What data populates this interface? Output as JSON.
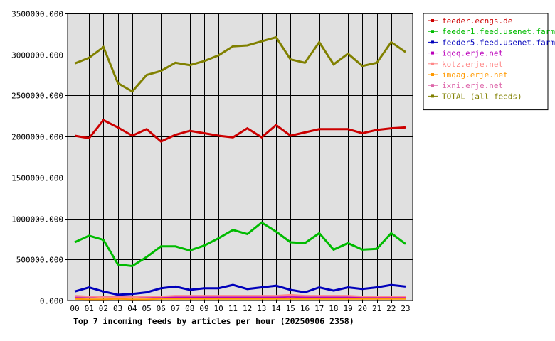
{
  "chart_data": {
    "type": "line",
    "title": "Top 7 incoming feeds by articles per hour (20250906 2358)",
    "x": [
      "00",
      "01",
      "02",
      "03",
      "04",
      "05",
      "06",
      "07",
      "08",
      "09",
      "10",
      "11",
      "12",
      "13",
      "14",
      "15",
      "16",
      "17",
      "18",
      "19",
      "20",
      "21",
      "22",
      "23"
    ],
    "yticks": [
      "0.000",
      "500000.000",
      "1000000.000",
      "1500000.000",
      "2000000.000",
      "2500000.000",
      "3000000.000",
      "3500000.000"
    ],
    "ylim": [
      0,
      3500000
    ],
    "grid": true,
    "legend_position": "top-right",
    "plot_background": "#e0e0e0",
    "series": [
      {
        "name": "feeder.ecngs.de",
        "color": "#cc0000",
        "values": [
          2010000,
          1980000,
          2200000,
          2110000,
          2010000,
          2090000,
          1940000,
          2020000,
          2070000,
          2040000,
          2010000,
          1990000,
          2100000,
          1990000,
          2140000,
          2010000,
          2050000,
          2090000,
          2090000,
          2090000,
          2040000,
          2080000,
          2100000,
          2110000
        ]
      },
      {
        "name": "feeder1.feed.usenet.farm",
        "color": "#00bb00",
        "values": [
          710000,
          790000,
          740000,
          440000,
          420000,
          530000,
          660000,
          660000,
          610000,
          670000,
          760000,
          860000,
          810000,
          950000,
          840000,
          710000,
          700000,
          820000,
          620000,
          700000,
          620000,
          630000,
          820000,
          690000
        ]
      },
      {
        "name": "feeder5.feed.usenet.farm",
        "color": "#0000bb",
        "values": [
          110000,
          160000,
          110000,
          70000,
          80000,
          100000,
          150000,
          170000,
          130000,
          150000,
          150000,
          190000,
          140000,
          160000,
          180000,
          130000,
          100000,
          160000,
          120000,
          160000,
          140000,
          160000,
          190000,
          170000
        ]
      },
      {
        "name": "iqoq.erje.net",
        "color": "#bb00bb",
        "values": [
          40000,
          35000,
          40000,
          40000,
          40000,
          45000,
          40000,
          40000,
          40000,
          40000,
          40000,
          40000,
          40000,
          40000,
          40000,
          45000,
          40000,
          40000,
          40000,
          40000,
          40000,
          40000,
          40000,
          40000
        ]
      },
      {
        "name": "kotz.erje.net",
        "color": "#ff8888",
        "values": [
          60000,
          50000,
          40000,
          40000,
          40000,
          50000,
          50000,
          60000,
          60000,
          60000,
          60000,
          60000,
          60000,
          60000,
          60000,
          70000,
          60000,
          60000,
          60000,
          60000,
          50000,
          50000,
          50000,
          50000
        ]
      },
      {
        "name": "imqag.erje.net",
        "color": "#ff9900",
        "values": [
          20000,
          15000,
          15000,
          20000,
          15000,
          15000,
          20000,
          20000,
          20000,
          20000,
          20000,
          20000,
          20000,
          20000,
          20000,
          20000,
          20000,
          20000,
          20000,
          20000,
          20000,
          20000,
          20000,
          20000
        ]
      },
      {
        "name": "ixni.erje.net",
        "color": "#dd66aa",
        "values": [
          50000,
          45000,
          50000,
          45000,
          45000,
          50000,
          50000,
          55000,
          55000,
          55000,
          55000,
          55000,
          55000,
          55000,
          55000,
          60000,
          55000,
          55000,
          55000,
          55000,
          50000,
          50000,
          50000,
          50000
        ]
      },
      {
        "name": "TOTAL (all feeds)",
        "color": "#808000",
        "values": [
          2890000,
          2960000,
          3090000,
          2650000,
          2550000,
          2750000,
          2800000,
          2900000,
          2870000,
          2920000,
          2990000,
          3100000,
          3110000,
          3160000,
          3210000,
          2940000,
          2900000,
          3150000,
          2880000,
          3010000,
          2860000,
          2900000,
          3150000,
          3030000
        ]
      }
    ]
  }
}
